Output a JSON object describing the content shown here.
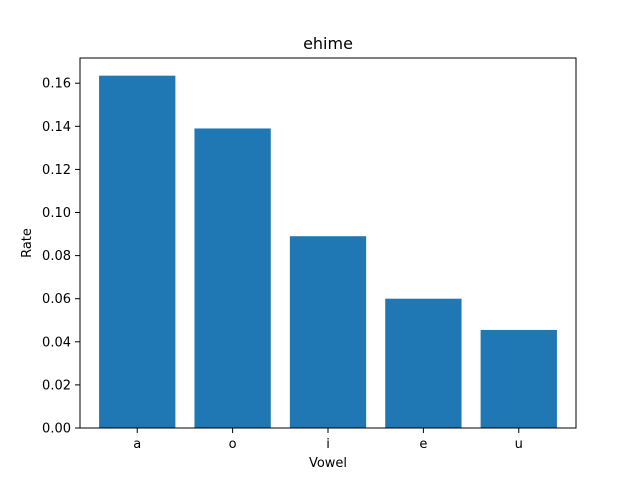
{
  "chart_data": {
    "type": "bar",
    "title": "ehime",
    "xlabel": "Vowel",
    "ylabel": "Rate",
    "categories": [
      "a",
      "o",
      "i",
      "e",
      "u"
    ],
    "values": [
      0.1635,
      0.139,
      0.089,
      0.06,
      0.0455
    ],
    "ylim": [
      0,
      0.1717
    ],
    "yticks": [
      "0.00",
      "0.02",
      "0.04",
      "0.06",
      "0.08",
      "0.10",
      "0.12",
      "0.14",
      "0.16"
    ],
    "bar_color": "#1f77b4",
    "grid": false,
    "legend": "none"
  }
}
